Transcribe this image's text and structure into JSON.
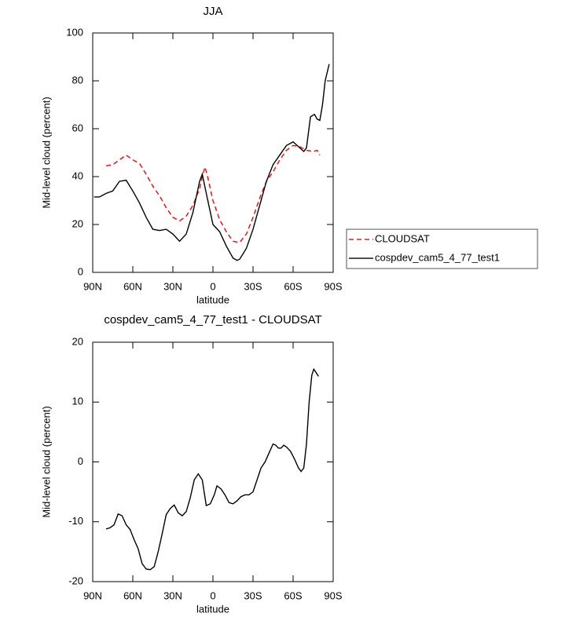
{
  "chart_data": [
    {
      "type": "line",
      "title": "JJA",
      "xlabel": "latitude",
      "ylabel": "Mid-level cloud (percent)",
      "xlim": [
        90,
        -90
      ],
      "ylim": [
        0,
        100
      ],
      "xticks": [
        {
          "value": 90,
          "label": "90N"
        },
        {
          "value": 60,
          "label": "60N"
        },
        {
          "value": 30,
          "label": "30N"
        },
        0,
        {
          "value": -30,
          "label": "30S"
        },
        {
          "value": -60,
          "label": "60S"
        },
        {
          "value": -90,
          "label": "90S"
        }
      ],
      "yticks": [
        0,
        20,
        40,
        60,
        80,
        100
      ],
      "legend": "right",
      "series": [
        {
          "name": "CLOUDSAT",
          "color": "#ff0000",
          "dash": true,
          "x": [
            80,
            75,
            70,
            65,
            60,
            55,
            50,
            45,
            40,
            35,
            30,
            25,
            20,
            15,
            10,
            8,
            6,
            4,
            0,
            -5,
            -10,
            -15,
            -20,
            -25,
            -30,
            -35,
            -40,
            -45,
            -50,
            -55,
            -60,
            -65,
            -70,
            -75,
            -78,
            -80
          ],
          "values": [
            44.5,
            45,
            47,
            49,
            47,
            45.5,
            41,
            36,
            32,
            27,
            23,
            21.5,
            23.5,
            28,
            35,
            40,
            44,
            40,
            30,
            22,
            17,
            13,
            12.5,
            16,
            23,
            31,
            38,
            42,
            47,
            51,
            53,
            52.5,
            51,
            50.5,
            51,
            49
          ]
        },
        {
          "name": "cospdev_cam5_4_77_test1",
          "color": "#000000",
          "dash": false,
          "x": [
            89,
            85,
            80,
            75,
            70,
            65,
            60,
            55,
            50,
            45,
            40,
            35,
            30,
            25,
            20,
            15,
            10,
            8,
            5,
            0,
            -5,
            -10,
            -15,
            -18,
            -20,
            -25,
            -30,
            -35,
            -40,
            -45,
            -50,
            -55,
            -60,
            -65,
            -68,
            -70,
            -73,
            -76,
            -78,
            -80,
            -82,
            -84,
            -87
          ],
          "values": [
            31.5,
            31.5,
            33,
            34,
            38,
            38.5,
            34,
            29,
            23,
            18,
            17.5,
            18,
            16,
            13,
            16,
            25,
            38,
            41,
            33,
            20,
            17,
            11,
            6,
            5,
            5.5,
            10,
            18,
            28,
            38,
            45,
            49,
            53,
            54.5,
            52,
            50.5,
            52,
            65,
            66,
            64,
            63.5,
            70,
            80,
            87
          ]
        }
      ]
    },
    {
      "type": "line",
      "title": "cospdev_cam5_4_77_test1 - CLOUDSAT",
      "xlabel": "latitude",
      "ylabel": "Mid-level cloud (percent)",
      "xlim": [
        90,
        -90
      ],
      "ylim": [
        -20,
        20
      ],
      "xticks": [
        {
          "value": 90,
          "label": "90N"
        },
        {
          "value": 60,
          "label": "60N"
        },
        {
          "value": 30,
          "label": "30N"
        },
        0,
        {
          "value": -30,
          "label": "30S"
        },
        {
          "value": -60,
          "label": "60S"
        },
        {
          "value": -90,
          "label": "90S"
        }
      ],
      "yticks": [
        -20,
        -10,
        0,
        10,
        20
      ],
      "series": [
        {
          "color": "#000000",
          "dash": false,
          "x": [
            80,
            77,
            74,
            71,
            68,
            65,
            62,
            59,
            56,
            53,
            50,
            47,
            44,
            41,
            38,
            35,
            32,
            29,
            26,
            23,
            20,
            17,
            14,
            11,
            8,
            5,
            2,
            -1,
            -3,
            -6,
            -9,
            -12,
            -15,
            -18,
            -21,
            -24,
            -27,
            -30,
            -33,
            -36,
            -39,
            -42,
            -45,
            -47,
            -49,
            -51,
            -53,
            -55,
            -58,
            -61,
            -64,
            -66,
            -68,
            -70,
            -72,
            -74,
            -75.5,
            -77,
            -79
          ],
          "values": [
            -11.2,
            -11,
            -10.5,
            -8.7,
            -9,
            -10.5,
            -11.3,
            -13,
            -14.5,
            -17,
            -17.9,
            -18,
            -17.5,
            -15,
            -12,
            -8.8,
            -7.8,
            -7.2,
            -8.5,
            -9,
            -8.3,
            -6,
            -3,
            -2,
            -3,
            -7.3,
            -7,
            -5.5,
            -4,
            -4.5,
            -5.5,
            -6.8,
            -7,
            -6.5,
            -5.8,
            -5.5,
            -5.5,
            -5,
            -3,
            -1,
            0,
            1.5,
            3,
            2.8,
            2.3,
            2.3,
            2.8,
            2.5,
            1.8,
            0.5,
            -1,
            -1.6,
            -1,
            3,
            10,
            14.5,
            15.5,
            15,
            14.3
          ]
        }
      ]
    }
  ]
}
